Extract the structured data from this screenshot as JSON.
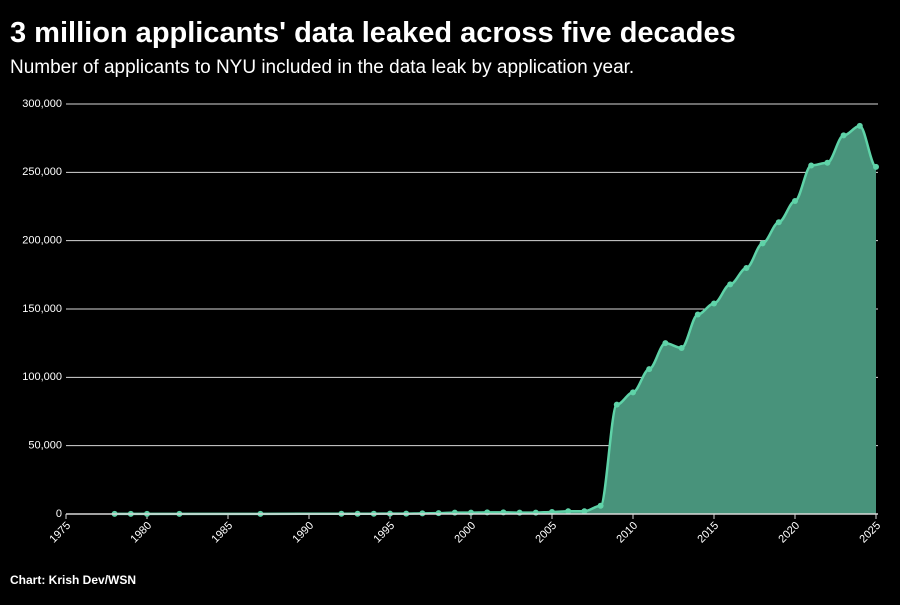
{
  "chart_data": {
    "type": "area",
    "title": "3 million applicants' data leaked across five decades",
    "subtitle": "Number of applicants to NYU included in the data leak by application year.",
    "credit": "Chart: Krish Dev/WSN",
    "x": [
      1978,
      1979,
      1980,
      1982,
      1987,
      1992,
      1993,
      1994,
      1995,
      1996,
      1997,
      1998,
      1999,
      2000,
      2001,
      2002,
      2003,
      2004,
      2005,
      2006,
      2007,
      2008,
      2009,
      2010,
      2011,
      2012,
      2013,
      2014,
      2015,
      2016,
      2017,
      2018,
      2019,
      2020,
      2021,
      2022,
      2023,
      2024,
      2025
    ],
    "values": [
      100,
      100,
      100,
      100,
      100,
      200,
      200,
      200,
      300,
      300,
      500,
      600,
      1000,
      1000,
      1200,
      1200,
      1000,
      1000,
      1500,
      2000,
      2000,
      6000,
      80000,
      89000,
      106000,
      125000,
      121500,
      146000,
      154000,
      168000,
      180000,
      198000,
      213500,
      229000,
      255000,
      257000,
      277000,
      284000,
      254000
    ],
    "color": "#5fd3a8",
    "fill": "#48937b",
    "xlim": [
      1975,
      2025
    ],
    "xticks": [
      1975,
      1980,
      1985,
      1990,
      1995,
      2000,
      2005,
      2010,
      2015,
      2020,
      2025
    ],
    "ylim": [
      0,
      300000
    ],
    "yticks": [
      0,
      {
        "value": 50000,
        "label": "50,000"
      },
      {
        "value": 100000,
        "label": "100,000"
      },
      {
        "value": 150000,
        "label": "150,000"
      },
      {
        "value": 200000,
        "label": "200,000"
      },
      {
        "value": 250000,
        "label": "250,000"
      },
      {
        "value": 300000,
        "label": "300,000"
      }
    ],
    "grid": true
  }
}
